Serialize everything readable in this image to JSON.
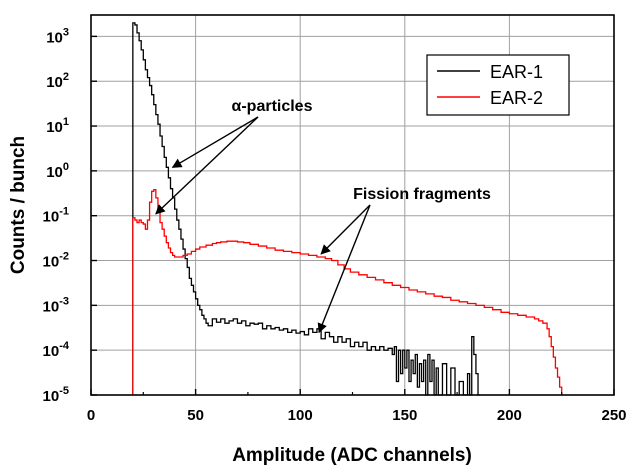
{
  "chart_data": {
    "type": "line",
    "xlabel": "Amplitude (ADC channels)",
    "ylabel": "Counts / bunch",
    "xlim": [
      0,
      250
    ],
    "ylim": [
      1e-05,
      3000
    ],
    "yscale": "log",
    "grid": true,
    "legend_position": "top-right",
    "x_ticks": [
      "0",
      "50",
      "100",
      "150",
      "200",
      "250"
    ],
    "y_ticks": [
      {
        "base": "10",
        "exp": "-5",
        "value": 1e-05
      },
      {
        "base": "10",
        "exp": "-4",
        "value": 0.0001
      },
      {
        "base": "10",
        "exp": "-3",
        "value": 0.001
      },
      {
        "base": "10",
        "exp": "-2",
        "value": 0.01
      },
      {
        "base": "10",
        "exp": "-1",
        "value": 0.1
      },
      {
        "base": "10",
        "exp": "0",
        "value": 1
      },
      {
        "base": "10",
        "exp": "1",
        "value": 10
      },
      {
        "base": "10",
        "exp": "2",
        "value": 100
      },
      {
        "base": "10",
        "exp": "3",
        "value": 1000
      }
    ],
    "series": [
      {
        "name": "EAR-1",
        "color": "#000000",
        "style": "step",
        "points": [
          [
            20,
            1e-05
          ],
          [
            20,
            2000
          ],
          [
            21,
            1800
          ],
          [
            22,
            1200
          ],
          [
            23,
            800
          ],
          [
            24,
            500
          ],
          [
            25,
            300
          ],
          [
            26,
            180
          ],
          [
            27,
            120
          ],
          [
            28,
            80
          ],
          [
            29,
            50
          ],
          [
            30,
            30
          ],
          [
            31,
            18
          ],
          [
            32,
            11
          ],
          [
            33,
            6
          ],
          [
            34,
            3.5
          ],
          [
            35,
            2
          ],
          [
            36,
            1.2
          ],
          [
            37,
            0.7
          ],
          [
            38,
            0.4
          ],
          [
            39,
            0.25
          ],
          [
            40,
            0.14
          ],
          [
            41,
            0.08
          ],
          [
            42,
            0.05
          ],
          [
            43,
            0.03
          ],
          [
            44,
            0.018
          ],
          [
            45,
            0.011
          ],
          [
            46,
            0.007
          ],
          [
            47,
            0.004
          ],
          [
            48,
            0.0028
          ],
          [
            49,
            0.002
          ],
          [
            50,
            0.0014
          ],
          [
            51,
            0.001
          ],
          [
            52,
            0.0008
          ],
          [
            53,
            0.0006
          ],
          [
            54,
            0.0005
          ],
          [
            55,
            0.0004
          ],
          [
            56,
            0.00035
          ],
          [
            58,
            0.0005
          ],
          [
            60,
            0.00042
          ],
          [
            62,
            0.0005
          ],
          [
            64,
            0.0004
          ],
          [
            66,
            0.00045
          ],
          [
            68,
            0.0005
          ],
          [
            70,
            0.0004
          ],
          [
            72,
            0.00045
          ],
          [
            74,
            0.00035
          ],
          [
            76,
            0.0004
          ],
          [
            78,
            0.00038
          ],
          [
            80,
            0.0004
          ],
          [
            82,
            0.0003
          ],
          [
            84,
            0.00035
          ],
          [
            86,
            0.0003
          ],
          [
            88,
            0.00032
          ],
          [
            90,
            0.00028
          ],
          [
            92,
            0.0003
          ],
          [
            94,
            0.00025
          ],
          [
            96,
            0.00028
          ],
          [
            98,
            0.00024
          ],
          [
            100,
            0.00026
          ],
          [
            102,
            0.00022
          ],
          [
            104,
            0.0003
          ],
          [
            106,
            0.00025
          ],
          [
            108,
            0.0003
          ],
          [
            110,
            0.00018
          ],
          [
            112,
            0.00025
          ],
          [
            114,
            0.0002
          ],
          [
            116,
            0.00015
          ],
          [
            118,
            0.0002
          ],
          [
            120,
            0.00015
          ],
          [
            122,
            0.00018
          ],
          [
            124,
            0.00012
          ],
          [
            126,
            0.00015
          ],
          [
            128,
            0.00012
          ],
          [
            130,
            0.00015
          ],
          [
            132,
            0.0001
          ],
          [
            134,
            0.00012
          ],
          [
            136,
            0.0001
          ],
          [
            138,
            0.00012
          ],
          [
            140,
            0.0001
          ],
          [
            142,
            0.00011
          ],
          [
            144,
            8e-05
          ],
          [
            145,
            0.00012
          ],
          [
            146,
            2e-05
          ],
          [
            147,
            0.0001
          ],
          [
            148,
            3e-05
          ],
          [
            149,
            0.0001
          ],
          [
            150,
            4e-05
          ],
          [
            151,
            0.0001
          ],
          [
            152,
            2e-05
          ],
          [
            153,
            6e-05
          ],
          [
            154,
            3e-05
          ],
          [
            155,
            8e-05
          ],
          [
            156,
            1.5e-05
          ],
          [
            157,
            5e-05
          ],
          [
            158,
            2e-05
          ],
          [
            159,
            6e-05
          ],
          [
            160,
            1e-05
          ],
          [
            161,
            8e-05
          ],
          [
            162,
            2e-05
          ],
          [
            163,
            6e-05
          ],
          [
            164,
            1e-05
          ],
          [
            165,
            4e-05
          ],
          [
            166,
            1e-05
          ],
          [
            168,
            5e-05
          ],
          [
            170,
            1e-05
          ],
          [
            172,
            4e-05
          ],
          [
            174,
            1e-05
          ],
          [
            176,
            2e-05
          ],
          [
            178,
            1e-05
          ],
          [
            180,
            3e-05
          ],
          [
            181,
            1e-05
          ],
          [
            182,
            0.0002
          ],
          [
            183,
            8e-05
          ],
          [
            184,
            3e-05
          ],
          [
            185,
            1e-05
          ],
          [
            186,
            1e-05
          ]
        ]
      },
      {
        "name": "EAR-2",
        "color": "#ff0000",
        "style": "step",
        "points": [
          [
            20,
            1e-05
          ],
          [
            20,
            0.09
          ],
          [
            21,
            0.08
          ],
          [
            22,
            0.07
          ],
          [
            23,
            0.08
          ],
          [
            24,
            0.07
          ],
          [
            25,
            0.065
          ],
          [
            26,
            0.05
          ],
          [
            27,
            0.08
          ],
          [
            28,
            0.2
          ],
          [
            29,
            0.35
          ],
          [
            30,
            0.38
          ],
          [
            31,
            0.25
          ],
          [
            32,
            0.12
          ],
          [
            33,
            0.07
          ],
          [
            34,
            0.05
          ],
          [
            35,
            0.035
          ],
          [
            36,
            0.025
          ],
          [
            37,
            0.019
          ],
          [
            38,
            0.015
          ],
          [
            39,
            0.013
          ],
          [
            40,
            0.012
          ],
          [
            42,
            0.012
          ],
          [
            44,
            0.013
          ],
          [
            46,
            0.014
          ],
          [
            48,
            0.016
          ],
          [
            50,
            0.018
          ],
          [
            52,
            0.02
          ],
          [
            55,
            0.022
          ],
          [
            58,
            0.024
          ],
          [
            60,
            0.025
          ],
          [
            62,
            0.026
          ],
          [
            65,
            0.027
          ],
          [
            68,
            0.027
          ],
          [
            70,
            0.026
          ],
          [
            73,
            0.025
          ],
          [
            76,
            0.023
          ],
          [
            80,
            0.021
          ],
          [
            84,
            0.019
          ],
          [
            88,
            0.017
          ],
          [
            92,
            0.016
          ],
          [
            96,
            0.015
          ],
          [
            100,
            0.014
          ],
          [
            104,
            0.013
          ],
          [
            108,
            0.012
          ],
          [
            112,
            0.011
          ],
          [
            115,
            0.01
          ],
          [
            118,
            0.008
          ],
          [
            121,
            0.0065
          ],
          [
            124,
            0.0055
          ],
          [
            128,
            0.0048
          ],
          [
            132,
            0.0042
          ],
          [
            136,
            0.0037
          ],
          [
            140,
            0.0032
          ],
          [
            144,
            0.0028
          ],
          [
            148,
            0.0025
          ],
          [
            152,
            0.0022
          ],
          [
            156,
            0.002
          ],
          [
            160,
            0.0018
          ],
          [
            164,
            0.0016
          ],
          [
            168,
            0.0015
          ],
          [
            172,
            0.0013
          ],
          [
            176,
            0.0012
          ],
          [
            180,
            0.0011
          ],
          [
            184,
            0.001
          ],
          [
            188,
            0.0009
          ],
          [
            192,
            0.0008
          ],
          [
            196,
            0.0007
          ],
          [
            200,
            0.00065
          ],
          [
            204,
            0.0006
          ],
          [
            208,
            0.00055
          ],
          [
            212,
            0.0005
          ],
          [
            214,
            0.00045
          ],
          [
            216,
            0.0004
          ],
          [
            218,
            0.0003
          ],
          [
            219,
            0.0002
          ],
          [
            220,
            0.00012
          ],
          [
            221,
            7e-05
          ],
          [
            222,
            4e-05
          ],
          [
            223,
            2.5e-05
          ],
          [
            224,
            1.5e-05
          ],
          [
            225,
            1e-05
          ]
        ]
      }
    ],
    "annotations": [
      {
        "text": "α-particles",
        "arrows_to": [
          [
            39,
            1.2
          ],
          [
            31,
            0.11
          ]
        ]
      },
      {
        "text": "Fission fragments",
        "arrows_to": [
          [
            110,
            0.014
          ],
          [
            109,
            0.00025
          ]
        ]
      }
    ]
  }
}
